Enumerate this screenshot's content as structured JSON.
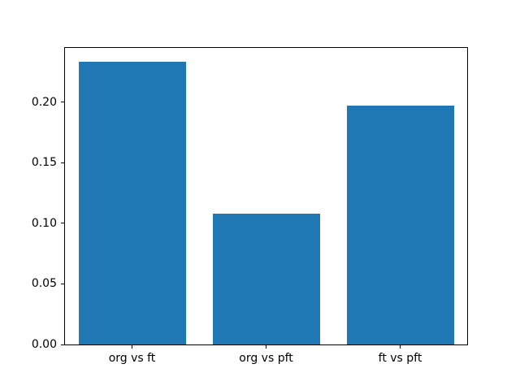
{
  "figure": {
    "background_color": "#ffffff",
    "spine_color": "#000000",
    "text_color": "#000000"
  },
  "chart_data": {
    "type": "bar",
    "categories": [
      "org vs ft",
      "org vs pft",
      "ft vs pft"
    ],
    "values": [
      0.233,
      0.108,
      0.197
    ],
    "title": "",
    "xlabel": "",
    "ylabel": "",
    "ylim": [
      0,
      0.2447
    ],
    "yticks": [
      0,
      0.05,
      0.1,
      0.15,
      0.2
    ],
    "ytick_labels": [
      "0.00",
      "0.05",
      "0.10",
      "0.15",
      "0.20"
    ],
    "bar_color": "#1f77b4",
    "bar_width_fraction": 0.8,
    "grid": false,
    "legend": false
  }
}
